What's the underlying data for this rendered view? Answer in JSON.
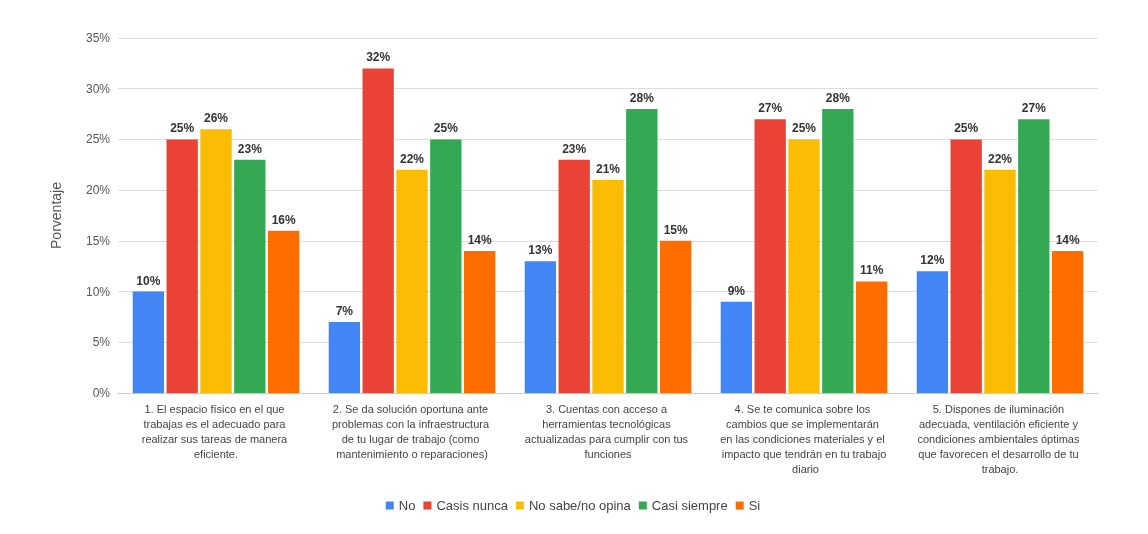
{
  "chart_data": {
    "type": "bar",
    "ylabel": "Porventaje",
    "categories": [
      "1. El espacio físico en el que trabajas es el adecuado para realizar sus tareas de manera eficiente.",
      "2. Se da solución oportuna ante problemas con la infraestructura de tu lugar de trabajo (como mantenimiento o reparaciones)",
      "3. Cuentas con acceso a herramientas tecnológicas actualizadas para cumplir con tus funciones",
      "4. Se te comunica sobre los cambios que se implementarán en las condiciones materiales y el impacto que tendrán en tu trabajo diario",
      "5. Dispones de iluminación adecuada, ventilación eficiente y condiciones ambientales óptimas que favorecen el desarrollo de tu trabajo."
    ],
    "series": [
      {
        "name": "No",
        "color": "#4285f4",
        "values": [
          10,
          7,
          13,
          9,
          12
        ],
        "value_labels": [
          "10%",
          "7%",
          "13%",
          "9%",
          "12%"
        ]
      },
      {
        "name": "Casis nunca",
        "color": "#ea4335",
        "values": [
          25,
          32,
          23,
          27,
          25
        ],
        "value_labels": [
          "25%",
          "32%",
          "23%",
          "27%",
          "25%"
        ]
      },
      {
        "name": "No sabe/no opina",
        "color": "#fbbc04",
        "values": [
          26,
          22,
          21,
          25,
          22
        ],
        "value_labels": [
          "26%",
          "22%",
          "21%",
          "25%",
          "22%"
        ]
      },
      {
        "name": "Casi siempre",
        "color": "#34a853",
        "values": [
          23,
          25,
          28,
          28,
          27
        ],
        "value_labels": [
          "23%",
          "25%",
          "28%",
          "28%",
          "27%"
        ]
      },
      {
        "name": "Si",
        "color": "#ff6d01",
        "values": [
          16,
          14,
          15,
          11,
          14
        ],
        "value_labels": [
          "16%",
          "14%",
          "15%",
          "11%",
          "14%"
        ]
      }
    ],
    "ylim": [
      0,
      35
    ],
    "yticks": [
      {
        "value": 0,
        "label": "0%"
      },
      {
        "value": 5,
        "label": "5%"
      },
      {
        "value": 10,
        "label": "10%"
      },
      {
        "value": 15,
        "label": "15%"
      },
      {
        "value": 20,
        "label": "20%"
      },
      {
        "value": 25,
        "label": "25%"
      },
      {
        "value": 30,
        "label": "30%"
      },
      {
        "value": 35,
        "label": "35%"
      }
    ],
    "grid": "y",
    "legend": "bottom"
  }
}
